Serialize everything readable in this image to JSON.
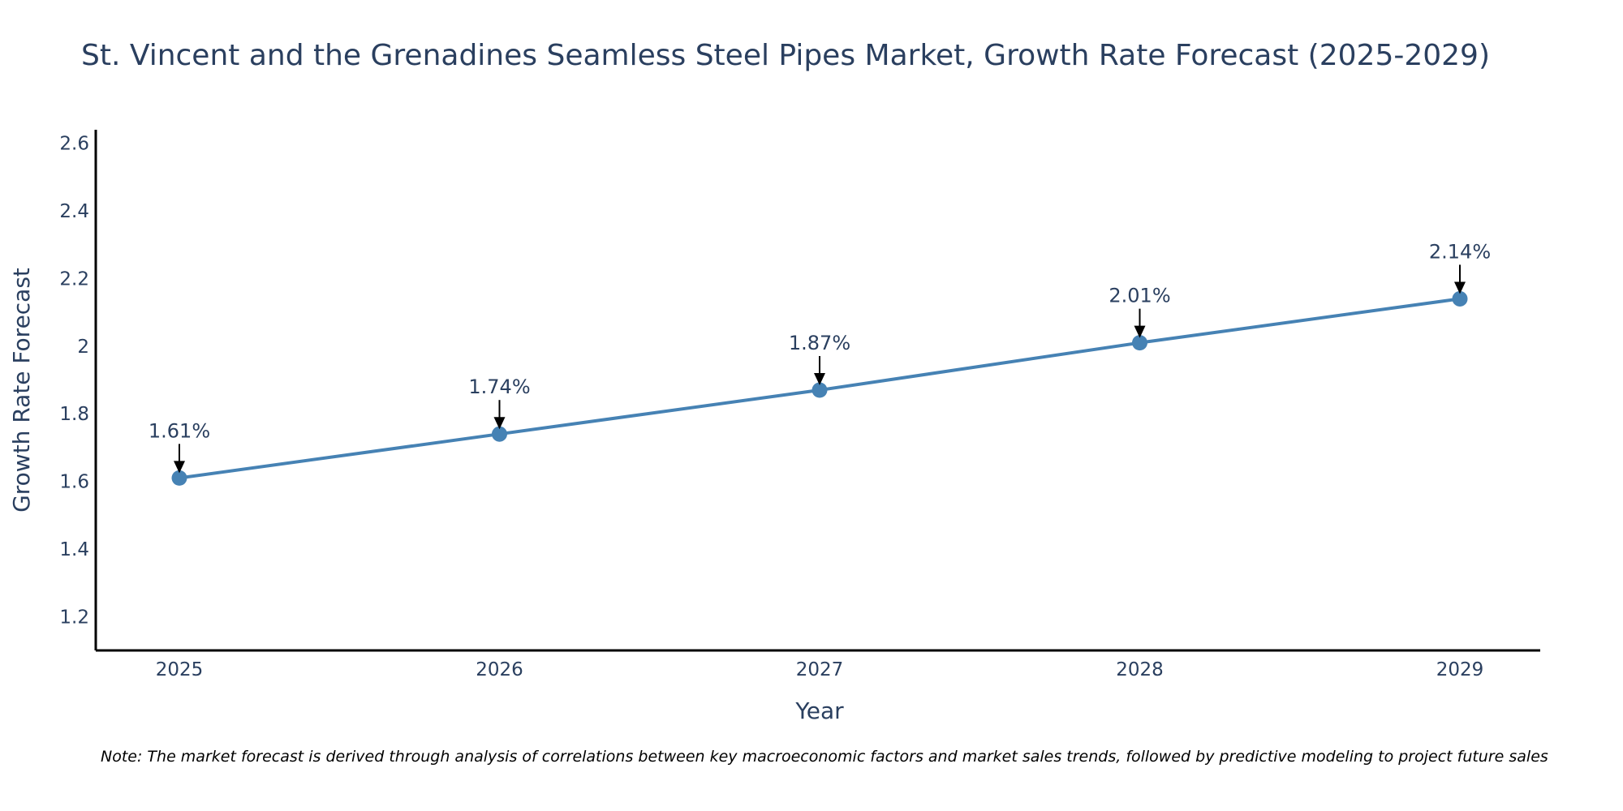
{
  "chart_data": {
    "type": "line",
    "title": "St. Vincent and the Grenadines Seamless Steel Pipes Market, Growth Rate Forecast (2025-2029)",
    "xlabel": "Year",
    "ylabel": "Growth Rate Forecast",
    "categories": [
      "2025",
      "2026",
      "2027",
      "2028",
      "2029"
    ],
    "values": [
      1.61,
      1.74,
      1.87,
      2.01,
      2.14
    ],
    "data_labels": [
      "1.61%",
      "1.74%",
      "1.87%",
      "2.01%",
      "2.14%"
    ],
    "ylim": [
      1.1,
      2.64
    ],
    "yticks": [
      1.2,
      1.4,
      1.6,
      1.8,
      2.0,
      2.2,
      2.4,
      2.6
    ],
    "ytick_labels": [
      "1.2",
      "1.4",
      "1.6",
      "1.8",
      "2",
      "2.2",
      "2.4",
      "2.6"
    ],
    "grid": false,
    "line_color": "#4682b4",
    "axis_color": "#000000",
    "text_color": "#2a3f5f",
    "note": "Note: The market forecast is derived through analysis of correlations between key macroeconomic factors and market sales trends, followed by predictive modeling to project future sales"
  }
}
